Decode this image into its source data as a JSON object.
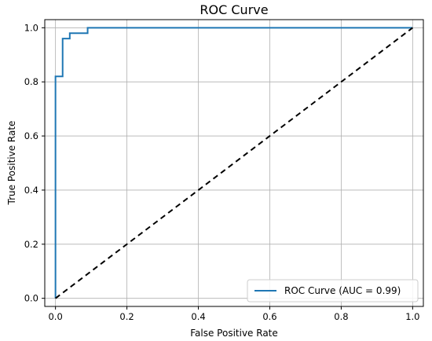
{
  "chart_data": {
    "type": "line",
    "title": "ROC Curve",
    "xlabel": "False Positive Rate",
    "ylabel": "True Positive Rate",
    "xlim": [
      -0.03,
      1.03
    ],
    "ylim": [
      -0.03,
      1.03
    ],
    "xticks": [
      0.0,
      0.2,
      0.4,
      0.6,
      0.8,
      1.0
    ],
    "yticks": [
      0.0,
      0.2,
      0.4,
      0.6,
      0.8,
      1.0
    ],
    "xtick_labels": [
      "0.0",
      "0.2",
      "0.4",
      "0.6",
      "0.8",
      "1.0"
    ],
    "ytick_labels": [
      "0.0",
      "0.2",
      "0.4",
      "0.6",
      "0.8",
      "1.0"
    ],
    "grid": true,
    "legend_position": "lower-right",
    "series": [
      {
        "name": "ROC Curve (AUC = 0.99)",
        "color": "#1f77b4",
        "style": "solid",
        "x": [
          0.0,
          0.0,
          0.0,
          0.02,
          0.02,
          0.04,
          0.04,
          0.09,
          0.09,
          1.0
        ],
        "y": [
          0.0,
          0.82,
          0.82,
          0.82,
          0.96,
          0.96,
          0.98,
          0.98,
          1.0,
          1.0
        ]
      },
      {
        "color": "#000000",
        "style": "dashed",
        "x": [
          0.0,
          1.0
        ],
        "y": [
          0.0,
          1.0
        ]
      }
    ]
  }
}
